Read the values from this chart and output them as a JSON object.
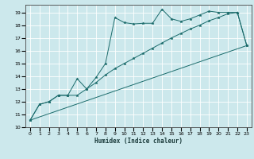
{
  "xlabel": "Humidex (Indice chaleur)",
  "bg_color": "#cce8ec",
  "grid_color": "#ffffff",
  "line_color": "#1a6b6b",
  "xlim": [
    -0.5,
    23.5
  ],
  "ylim": [
    10,
    19.6
  ],
  "yticks": [
    10,
    11,
    12,
    13,
    14,
    15,
    16,
    17,
    18,
    19
  ],
  "xticks": [
    0,
    1,
    2,
    3,
    4,
    5,
    6,
    7,
    8,
    9,
    10,
    11,
    12,
    13,
    14,
    15,
    16,
    17,
    18,
    19,
    20,
    21,
    22,
    23
  ],
  "line1_x": [
    0,
    1,
    2,
    3,
    4,
    5,
    6,
    7,
    8,
    9,
    10,
    11,
    12,
    13,
    14,
    15,
    16,
    17,
    18,
    19,
    20,
    21,
    22,
    23
  ],
  "line1_y": [
    10.55,
    11.8,
    12.0,
    12.5,
    12.5,
    13.8,
    13.0,
    13.9,
    15.0,
    18.6,
    18.2,
    18.1,
    18.15,
    18.15,
    19.25,
    18.5,
    18.3,
    18.5,
    18.8,
    19.1,
    19.0,
    19.0,
    19.0,
    16.4
  ],
  "line2_x": [
    0,
    1,
    2,
    3,
    4,
    5,
    6,
    7,
    8,
    9,
    10,
    11,
    12,
    13,
    14,
    15,
    16,
    17,
    18,
    19,
    20,
    21,
    22,
    23
  ],
  "line2_y": [
    10.55,
    11.8,
    12.0,
    12.5,
    12.5,
    12.5,
    13.0,
    13.5,
    14.1,
    14.6,
    15.0,
    15.4,
    15.8,
    16.2,
    16.6,
    17.0,
    17.35,
    17.7,
    18.0,
    18.35,
    18.6,
    18.9,
    19.0,
    16.4
  ],
  "line3_x": [
    0,
    23
  ],
  "line3_y": [
    10.55,
    16.4
  ]
}
